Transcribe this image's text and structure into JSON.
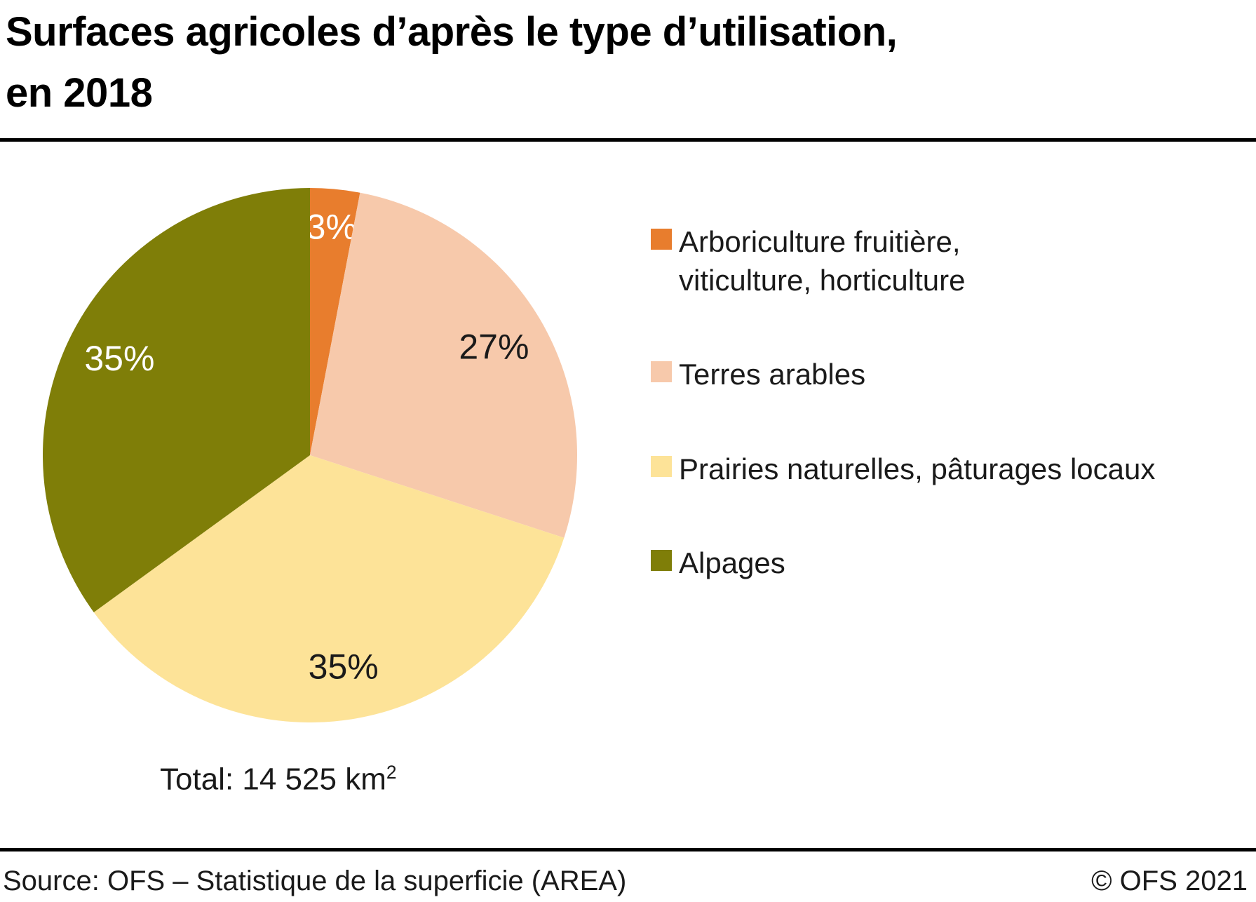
{
  "header": {
    "title_line1": "Surfaces agricoles d’après le type d’utilisation,",
    "title_line2": "en 2018"
  },
  "chart_data": {
    "type": "pie",
    "title": "Surfaces agricoles d’après le type d’utilisation, en 2018",
    "start_angle_deg": 0,
    "direction": "clockwise",
    "legend_position": "right",
    "total_label": "Total: 14 525 km²",
    "slices": [
      {
        "label": "Arboriculture fruitière, viticulture, horticulture",
        "value": 3,
        "pct_label": "3%",
        "color": "#e87d2d",
        "label_color": "#ffffff",
        "label_r_frac": 0.86
      },
      {
        "label": "Terres arables",
        "value": 27,
        "pct_label": "27%",
        "color": "#f7c9ab",
        "label_color": "#1a1a1a",
        "label_r_frac": 0.8
      },
      {
        "label": "Prairies naturelles, pâturages locaux",
        "value": 35,
        "pct_label": "35%",
        "color": "#fde398",
        "label_color": "#1a1a1a",
        "label_r_frac": 0.8
      },
      {
        "label": "Alpages",
        "value": 35,
        "pct_label": "35%",
        "color": "#7f7e08",
        "label_color": "#ffffff",
        "label_r_frac": 0.8
      }
    ]
  },
  "legend": {
    "items": [
      {
        "lines": [
          "Arboriculture fruitière,",
          "viticulture, horticulture"
        ],
        "color": "#e87d2d"
      },
      {
        "lines": [
          "Terres arables"
        ],
        "color": "#f7c9ab"
      },
      {
        "lines": [
          "Prairies naturelles, pâturages locaux"
        ],
        "color": "#fde398"
      },
      {
        "lines": [
          "Alpages"
        ],
        "color": "#7f7e08"
      }
    ]
  },
  "total": {
    "text": "Total: 14 525 km",
    "superscript": "2"
  },
  "footer": {
    "source": "Source: OFS – Statistique de la superficie (AREA)",
    "copyright": "© OFS 2021"
  }
}
